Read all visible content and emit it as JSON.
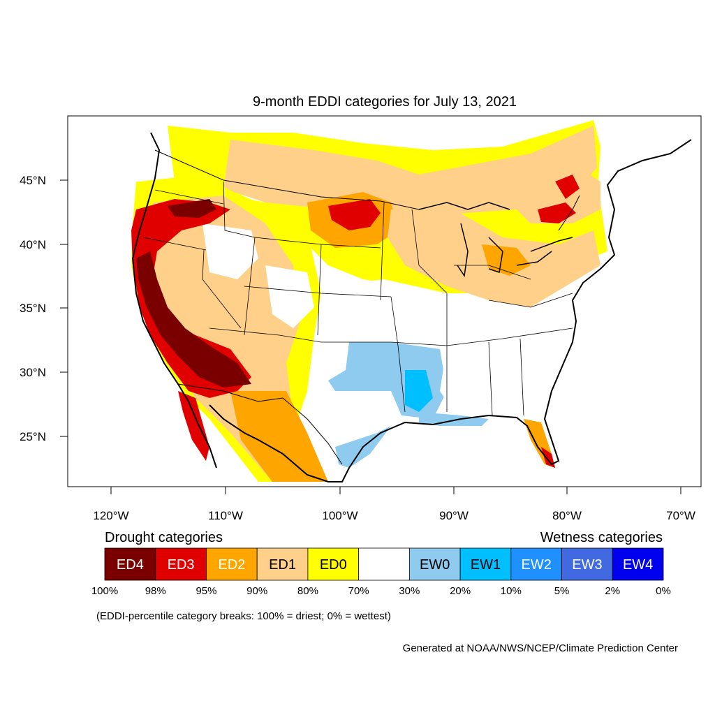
{
  "title": "9-month EDDI categories for July 13, 2021",
  "lat_ticks": [
    "45°N",
    "40°N",
    "35°N",
    "30°N",
    "25°N"
  ],
  "lon_ticks": [
    "120°W",
    "110°W",
    "100°W",
    "90°W",
    "80°W",
    "70°W"
  ],
  "drought_heading": "Drought categories",
  "wetness_heading": "Wetness categories",
  "categories": [
    {
      "label": "ED4",
      "color": "#7a0000",
      "text_color": "#ffffff"
    },
    {
      "label": "ED3",
      "color": "#e00000",
      "text_color": "#ffffff"
    },
    {
      "label": "ED2",
      "color": "#ffa500",
      "text_color": "#ffffff"
    },
    {
      "label": "ED1",
      "color": "#ffd08a",
      "text_color": "#000000"
    },
    {
      "label": "ED0",
      "color": "#ffff00",
      "text_color": "#000000"
    },
    {
      "label": "",
      "color": "#ffffff",
      "text_color": "#000000"
    },
    {
      "label": "EW0",
      "color": "#8ecbee",
      "text_color": "#000000"
    },
    {
      "label": "EW1",
      "color": "#00bfff",
      "text_color": "#000000"
    },
    {
      "label": "EW2",
      "color": "#1e90ff",
      "text_color": "#ffffff"
    },
    {
      "label": "EW3",
      "color": "#4169e1",
      "text_color": "#ffffff"
    },
    {
      "label": "EW4",
      "color": "#0000ee",
      "text_color": "#ffffff"
    }
  ],
  "percentile_breaks": [
    "100%",
    "98%",
    "95%",
    "90%",
    "80%",
    "70%",
    "30%",
    "20%",
    "10%",
    "5%",
    "2%",
    "0%"
  ],
  "breaks_note": "(EDDI-percentile category breaks: 100% = driest; 0% = wettest)",
  "credit": "Generated at NOAA/NWS/NCEP/Climate Prediction Center"
}
